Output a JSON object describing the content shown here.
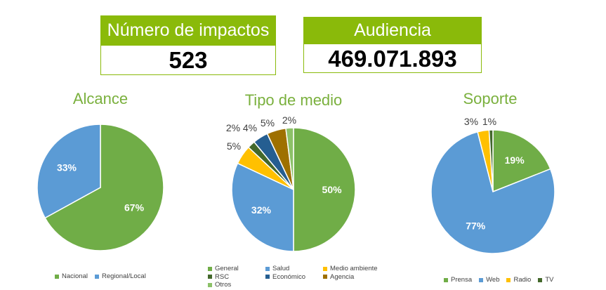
{
  "kpis": {
    "impactos": {
      "label": "Número de impactos",
      "value": "523"
    },
    "audiencia": {
      "label": "Audiencia",
      "value": "469.071.893"
    }
  },
  "colors": {
    "accent": "#8aba0a",
    "title": "#7ab03d"
  },
  "chart_data": [
    {
      "type": "pie",
      "title": "Alcance",
      "categories": [
        "Nacional",
        "Regional/Local"
      ],
      "values": [
        67,
        33
      ],
      "labels": [
        "67%",
        "33%"
      ],
      "colors": [
        "#70ad47",
        "#5b9bd5"
      ],
      "legend": "bottom"
    },
    {
      "type": "pie",
      "title": "Tipo de medio",
      "categories": [
        "General",
        "Salud",
        "Medio ambiente",
        "RSC",
        "Económico",
        "Agencia",
        "Otros"
      ],
      "values": [
        50,
        32,
        5,
        2,
        4,
        5,
        2
      ],
      "labels": [
        "50%",
        "32%",
        "5%",
        "2%",
        "4%",
        "5%",
        "2%"
      ],
      "colors": [
        "#70ad47",
        "#5b9bd5",
        "#ffc000",
        "#43682b",
        "#255e91",
        "#9e7000",
        "#8cc168"
      ],
      "legend": "bottom"
    },
    {
      "type": "pie",
      "title": "Soporte",
      "categories": [
        "Prensa",
        "Web",
        "Radio",
        "TV"
      ],
      "values": [
        19,
        77,
        3,
        1
      ],
      "labels": [
        "19%",
        "77%",
        "3%",
        "1%"
      ],
      "colors": [
        "#70ad47",
        "#5b9bd5",
        "#ffc000",
        "#43682b"
      ],
      "legend": "bottom"
    }
  ]
}
